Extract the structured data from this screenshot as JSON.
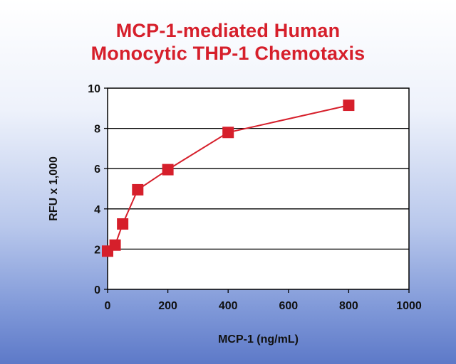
{
  "chart_data": {
    "type": "line",
    "title": [
      "MCP-1-mediated Human",
      "Monocytic THP-1 Chemotaxis"
    ],
    "xlabel": "MCP-1 (ng/mL)",
    "ylabel": "RFU x 1,000",
    "xlim": [
      0,
      1000
    ],
    "ylim": [
      0,
      10
    ],
    "xticks": [
      0,
      200,
      400,
      600,
      800,
      1000
    ],
    "yticks": [
      0,
      2,
      4,
      6,
      8,
      10
    ],
    "grid": "horizontal",
    "series": [
      {
        "marker": "square",
        "color": "#d61f2b",
        "x": [
          0,
          25,
          50,
          100,
          200,
          400,
          800
        ],
        "y": [
          1.9,
          2.2,
          3.25,
          4.95,
          5.95,
          7.8,
          9.15
        ]
      }
    ]
  }
}
